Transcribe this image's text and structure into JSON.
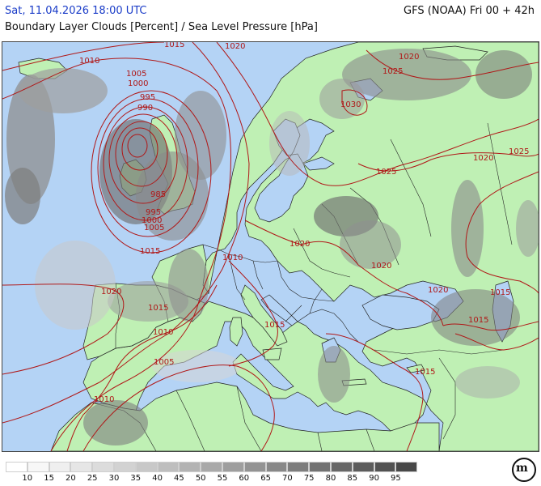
{
  "header": {
    "valid_time": "Sat, 11.04.2026 18:00 UTC",
    "model_run": "GFS (NOAA) Fri 00 + 42h",
    "title": "Boundary Layer Clouds [Percent] / Sea Level Pressure [hPa]"
  },
  "colors": {
    "sea": "#b4d3f5",
    "land": "#bff0b4",
    "isobar": "#b01818",
    "border": "#222222",
    "header_date": "#1a3cc8"
  },
  "legend": {
    "ticks": [
      "10",
      "15",
      "20",
      "25",
      "30",
      "35",
      "40",
      "45",
      "50",
      "55",
      "60",
      "65",
      "70",
      "75",
      "80",
      "85",
      "90",
      "95"
    ],
    "shades": [
      "#ffffff",
      "#f7f7f7",
      "#efefef",
      "#e6e6e6",
      "#dcdcdc",
      "#d2d2d2",
      "#c8c8c8",
      "#bebebe",
      "#b3b3b3",
      "#a9a9a9",
      "#9e9e9e",
      "#939393",
      "#888888",
      "#7d7d7d",
      "#727272",
      "#676767",
      "#5c5c5c",
      "#525252",
      "#484848"
    ]
  },
  "isobar_labels": [
    {
      "text": "1015"
    },
    {
      "text": "1020"
    },
    {
      "text": "1010"
    },
    {
      "text": "1005"
    },
    {
      "text": "1000"
    },
    {
      "text": "995"
    },
    {
      "text": "990"
    },
    {
      "text": "985"
    },
    {
      "text": "995"
    },
    {
      "text": "1000"
    },
    {
      "text": "1005"
    },
    {
      "text": "1015"
    },
    {
      "text": "1010"
    },
    {
      "text": "1020"
    },
    {
      "text": "1015"
    },
    {
      "text": "1010"
    },
    {
      "text": "1005"
    },
    {
      "text": "1010"
    },
    {
      "text": "1020"
    },
    {
      "text": "1025"
    },
    {
      "text": "1030"
    },
    {
      "text": "1025"
    },
    {
      "text": "1020"
    },
    {
      "text": "1025"
    },
    {
      "text": "1020"
    },
    {
      "text": "1020"
    },
    {
      "text": "1020"
    },
    {
      "text": "1015"
    },
    {
      "text": "1015"
    },
    {
      "text": "1015"
    },
    {
      "text": "1015"
    }
  ],
  "logo_text": "m"
}
